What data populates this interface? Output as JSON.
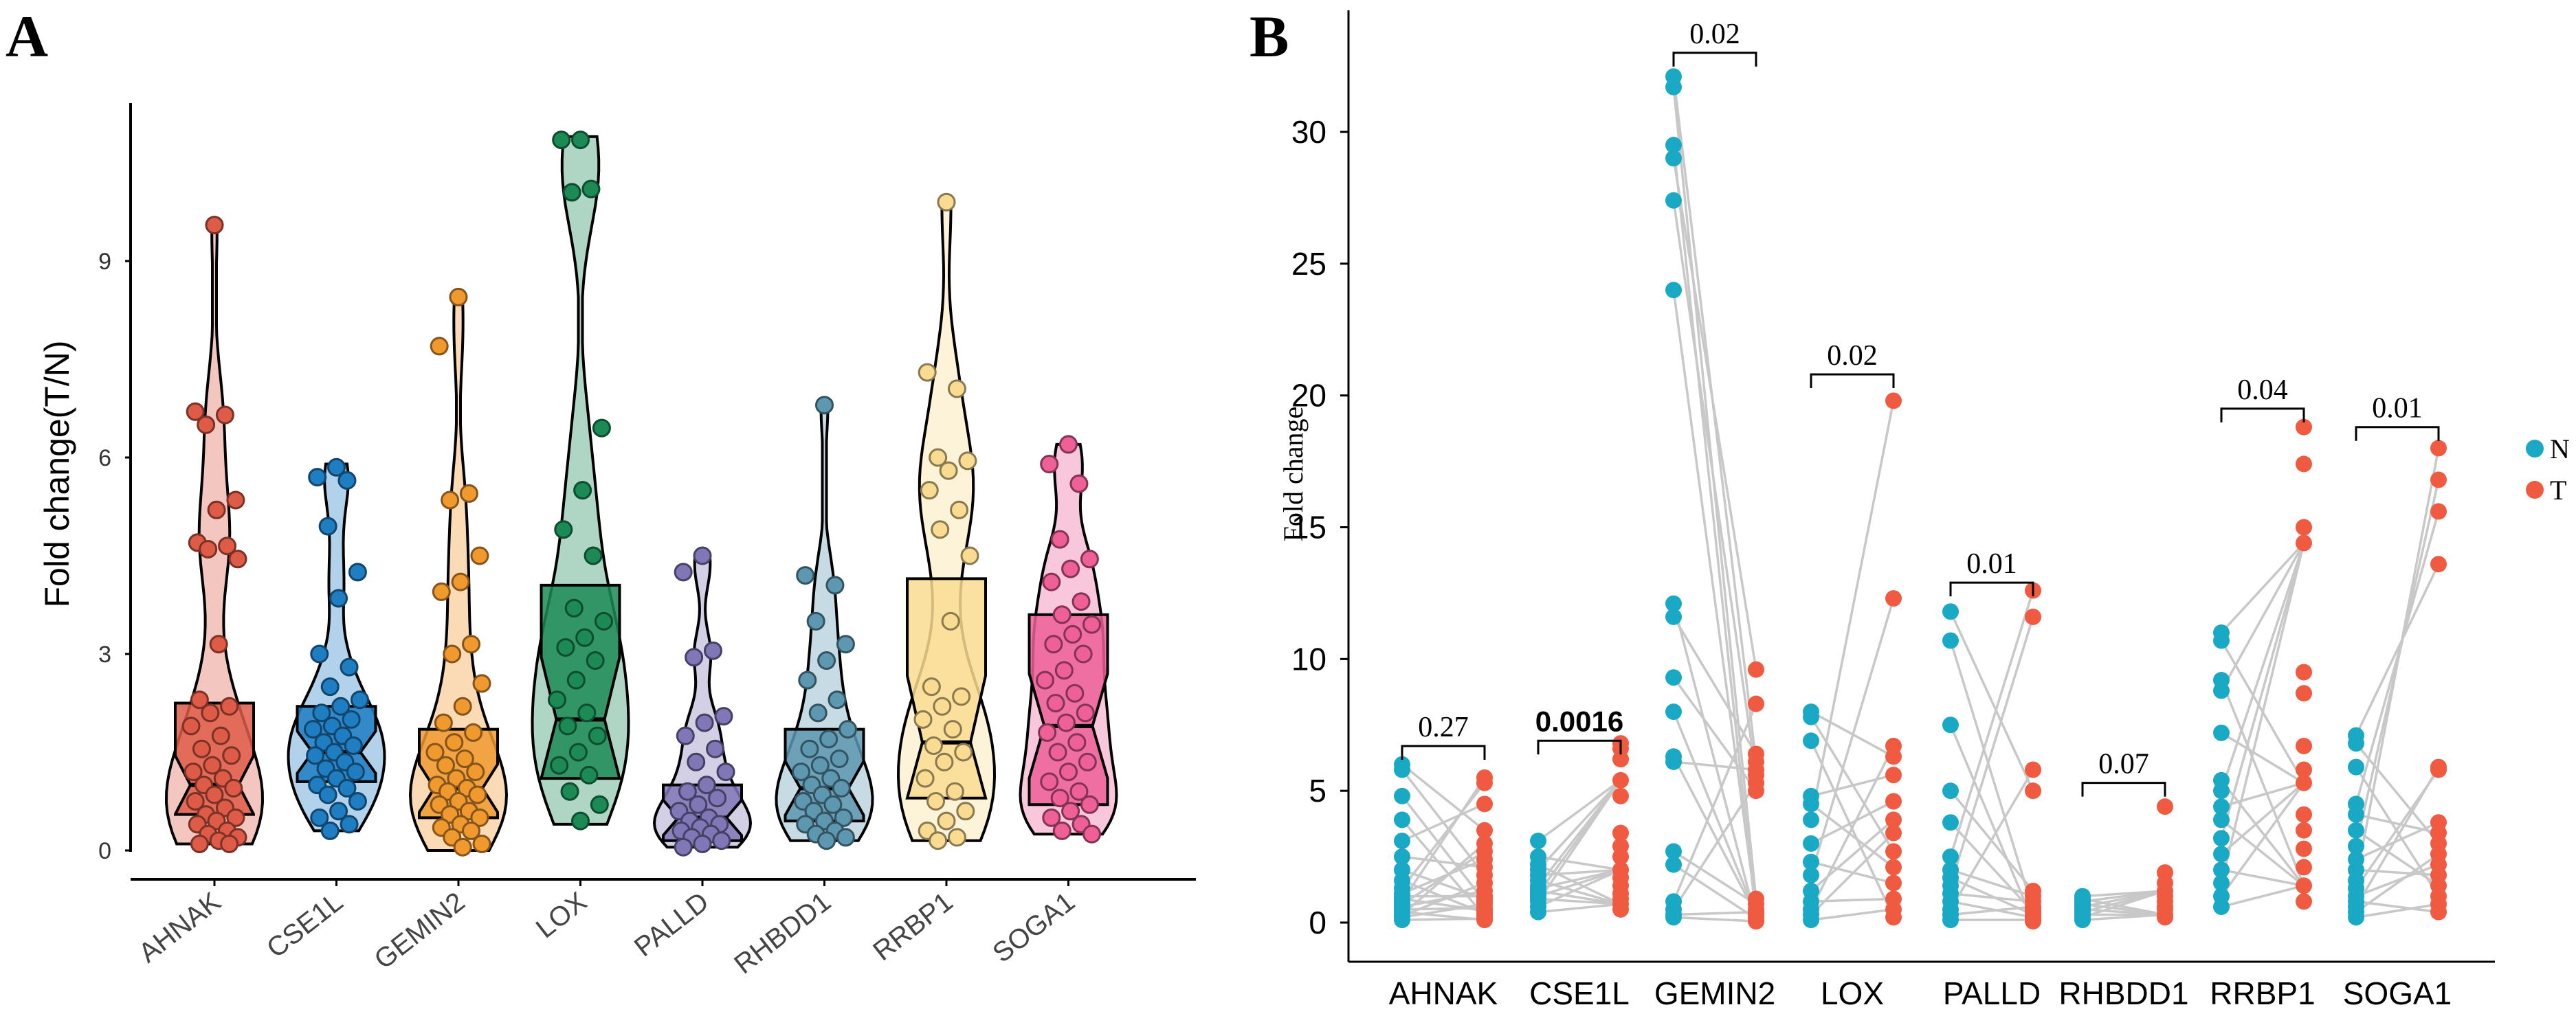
{
  "panel_a_label": "A",
  "panel_b_label": "B",
  "colors": {
    "N": "#1aa9c5",
    "T": "#f05a41",
    "line": "#c8c8c8",
    "genes_a": [
      "#de5b47",
      "#1f7dc2",
      "#f0992f",
      "#1b8a55",
      "#8077b6",
      "#5d97b0",
      "#f9dc91",
      "#ef5f98"
    ]
  },
  "chart_data": [
    {
      "type": "violin-box",
      "panel": "A",
      "title": "",
      "xlabel": "",
      "ylabel": "Fold change(T/N)",
      "ylim": [
        0,
        11
      ],
      "yticks": [
        0,
        3,
        6,
        9
      ],
      "categories": [
        "AHNAK",
        "CSE1L",
        "GEMIN2",
        "LOX",
        "PALLD",
        "RHBDD1",
        "RRBP1",
        "SOGA1"
      ],
      "box_stats": [
        {
          "gene": "AHNAK",
          "min": 0.1,
          "q1": 0.55,
          "median": 1.0,
          "q3": 2.25,
          "max": 9.6
        },
        {
          "gene": "CSE1L",
          "min": 0.3,
          "q1": 1.05,
          "median": 1.5,
          "q3": 2.2,
          "max": 5.9
        },
        {
          "gene": "GEMIN2",
          "min": 0.0,
          "q1": 0.5,
          "median": 0.95,
          "q3": 1.85,
          "max": 8.5
        },
        {
          "gene": "LOX",
          "min": 0.4,
          "q1": 1.1,
          "median": 2.0,
          "q3": 4.05,
          "max": 10.9
        },
        {
          "gene": "PALLD",
          "min": 0.05,
          "q1": 0.15,
          "median": 0.5,
          "q3": 1.0,
          "max": 4.5
        },
        {
          "gene": "RHBDD1",
          "min": 0.15,
          "q1": 0.45,
          "median": 0.95,
          "q3": 1.85,
          "max": 6.8
        },
        {
          "gene": "RRBP1",
          "min": 0.15,
          "q1": 0.8,
          "median": 1.65,
          "q3": 4.15,
          "max": 9.9
        },
        {
          "gene": "SOGA1",
          "min": 0.25,
          "q1": 0.7,
          "median": 1.9,
          "q3": 3.6,
          "max": 6.2
        }
      ],
      "points": {
        "AHNAK": [
          9.55,
          6.7,
          6.65,
          6.5,
          5.35,
          5.2,
          4.7,
          4.65,
          4.6,
          4.45,
          3.15,
          2.3,
          2.2,
          2.1,
          1.9,
          1.75,
          1.55,
          1.45,
          1.3,
          1.2,
          1.1,
          1.0,
          0.95,
          0.85,
          0.75,
          0.65,
          0.55,
          0.5,
          0.45,
          0.4,
          0.3,
          0.25,
          0.2,
          0.15,
          0.1,
          0.1
        ],
        "CSE1L": [
          5.85,
          5.7,
          5.65,
          4.95,
          4.25,
          3.85,
          3.0,
          2.8,
          2.5,
          2.3,
          2.2,
          2.1,
          2.0,
          1.9,
          1.85,
          1.75,
          1.65,
          1.6,
          1.5,
          1.45,
          1.35,
          1.25,
          1.2,
          1.1,
          1.0,
          0.95,
          0.85,
          0.75,
          0.6,
          0.5,
          0.4,
          0.3
        ],
        "GEMIN2": [
          8.45,
          7.7,
          5.45,
          5.35,
          4.5,
          4.1,
          3.95,
          3.15,
          3.0,
          2.55,
          2.2,
          1.95,
          1.8,
          1.65,
          1.5,
          1.4,
          1.3,
          1.2,
          1.1,
          1.0,
          0.95,
          0.9,
          0.85,
          0.75,
          0.7,
          0.6,
          0.55,
          0.5,
          0.4,
          0.35,
          0.3,
          0.2,
          0.1,
          0.05
        ],
        "LOX": [
          10.85,
          10.85,
          10.1,
          10.05,
          6.45,
          5.5,
          4.9,
          4.5,
          3.7,
          3.5,
          3.25,
          3.1,
          2.9,
          2.6,
          2.3,
          2.1,
          1.9,
          1.75,
          1.5,
          1.3,
          1.15,
          0.9,
          0.7,
          0.45
        ],
        "PALLD": [
          4.5,
          4.25,
          3.05,
          2.95,
          2.05,
          1.95,
          1.75,
          1.55,
          1.35,
          1.2,
          1.0,
          0.9,
          0.8,
          0.7,
          0.6,
          0.5,
          0.45,
          0.4,
          0.35,
          0.3,
          0.25,
          0.2,
          0.15,
          0.1,
          0.05
        ],
        "RHBDD1": [
          6.8,
          4.2,
          4.05,
          3.5,
          3.15,
          2.9,
          2.6,
          2.3,
          2.1,
          1.85,
          1.7,
          1.55,
          1.4,
          1.3,
          1.2,
          1.1,
          1.0,
          0.95,
          0.85,
          0.75,
          0.7,
          0.6,
          0.5,
          0.45,
          0.4,
          0.3,
          0.25,
          0.2,
          0.15
        ],
        "RRBP1": [
          9.9,
          7.3,
          7.05,
          6.0,
          5.95,
          5.8,
          5.5,
          5.2,
          4.9,
          4.5,
          3.5,
          2.5,
          2.35,
          2.2,
          2.0,
          1.85,
          1.6,
          1.5,
          1.35,
          1.1,
          0.9,
          0.75,
          0.6,
          0.45,
          0.3,
          0.2,
          0.15
        ],
        "SOGA1": [
          6.2,
          5.9,
          5.6,
          4.75,
          4.45,
          4.3,
          4.1,
          3.8,
          3.6,
          3.45,
          3.3,
          3.15,
          3.0,
          2.75,
          2.6,
          2.4,
          2.25,
          2.1,
          1.95,
          1.8,
          1.65,
          1.5,
          1.35,
          1.2,
          1.05,
          0.9,
          0.8,
          0.7,
          0.6,
          0.5,
          0.4,
          0.3,
          0.25
        ]
      }
    },
    {
      "type": "paired-scatter",
      "panel": "B",
      "title": "",
      "xlabel": "",
      "ylabel": "Fold change",
      "ylim": [
        -1,
        34
      ],
      "yticks": [
        0,
        5,
        10,
        15,
        20,
        25,
        30
      ],
      "categories": [
        "AHNAK",
        "CSE1L",
        "GEMIN2",
        "LOX",
        "PALLD",
        "RHBDD1",
        "RRBP1",
        "SOGA1"
      ],
      "legend": [
        {
          "label": "N",
          "color": "#1aa9c5"
        },
        {
          "label": "T",
          "color": "#f05a41"
        }
      ],
      "legend_position": "right",
      "pvalues": [
        "0.27",
        "0.0016",
        "0.02",
        "0.02",
        "0.01",
        "0.07",
        "0.04",
        "0.01"
      ],
      "pvalue_bold": [
        false,
        true,
        false,
        false,
        false,
        false,
        false,
        false
      ],
      "pvalue_heights": [
        6.7,
        6.9,
        33.0,
        20.8,
        12.9,
        5.3,
        19.5,
        18.8
      ],
      "series": [
        {
          "gene": "AHNAK",
          "N": [
            6.0,
            5.8,
            4.8,
            3.9,
            3.1,
            2.5,
            2.0,
            1.6,
            1.3,
            1.1,
            1.0,
            0.9,
            0.8,
            0.7,
            0.6,
            0.5,
            0.4,
            0.3,
            0.25,
            0.2,
            0.1
          ],
          "T": [
            5.5,
            5.3,
            4.5,
            3.5,
            3.0,
            2.7,
            2.4,
            2.1,
            1.8,
            1.5,
            1.2,
            1.0,
            0.9,
            0.8,
            0.7,
            0.55,
            0.45,
            0.35,
            0.25,
            0.15,
            0.1
          ]
        },
        {
          "gene": "CSE1L",
          "N": [
            3.1,
            2.5,
            2.2,
            2.0,
            1.8,
            1.6,
            1.4,
            1.3,
            1.2,
            1.1,
            1.0,
            0.9,
            0.8,
            0.6,
            0.4
          ],
          "T": [
            6.8,
            6.6,
            6.2,
            5.4,
            4.8,
            3.4,
            2.9,
            2.5,
            2.0,
            1.7,
            1.4,
            1.1,
            0.9,
            0.7,
            0.5
          ]
        },
        {
          "gene": "GEMIN2",
          "N": [
            32.1,
            31.7,
            29.5,
            29.0,
            27.4,
            24.0,
            12.1,
            11.6,
            9.3,
            8.0,
            6.3,
            6.1,
            2.7,
            2.2,
            0.8,
            0.5,
            0.3,
            0.2
          ],
          "T": [
            9.6,
            8.3,
            6.4,
            6.1,
            5.8,
            5.6,
            5.3,
            5.0,
            0.9,
            0.7,
            0.5,
            0.4,
            0.3,
            0.2,
            0.15,
            0.1,
            0.05,
            0.3
          ]
        },
        {
          "gene": "LOX",
          "N": [
            8.0,
            7.8,
            6.9,
            4.8,
            4.5,
            3.9,
            3.0,
            2.3,
            1.8,
            1.2,
            0.8,
            0.5,
            0.3,
            0.1
          ],
          "T": [
            19.8,
            12.3,
            6.7,
            6.3,
            5.6,
            4.6,
            3.9,
            3.4,
            2.7,
            2.1,
            1.5,
            0.9,
            0.5,
            0.2
          ]
        },
        {
          "gene": "PALLD",
          "N": [
            11.8,
            10.7,
            7.5,
            5.0,
            3.8,
            2.5,
            2.0,
            1.7,
            1.4,
            1.1,
            0.8,
            0.5,
            0.3,
            0.1
          ],
          "T": [
            12.6,
            11.6,
            5.8,
            5.0,
            1.2,
            1.0,
            0.8,
            0.6,
            0.5,
            0.4,
            0.3,
            0.2,
            0.1,
            0.05
          ]
        },
        {
          "gene": "RHBDD1",
          "N": [
            1.0,
            0.9,
            0.8,
            0.7,
            0.6,
            0.5,
            0.4,
            0.3,
            0.2,
            0.1
          ],
          "T": [
            4.4,
            1.9,
            1.5,
            1.2,
            1.0,
            0.8,
            0.6,
            0.5,
            0.3,
            0.2
          ]
        },
        {
          "gene": "RRBP1",
          "N": [
            11.0,
            10.7,
            9.2,
            8.8,
            7.2,
            5.4,
            5.0,
            4.4,
            3.9,
            3.2,
            2.6,
            2.0,
            1.5,
            1.0,
            0.6
          ],
          "T": [
            18.8,
            17.4,
            15.0,
            14.4,
            9.5,
            8.7,
            6.7,
            5.8,
            5.3,
            4.1,
            3.5,
            2.8,
            2.1,
            1.4,
            0.8
          ]
        },
        {
          "gene": "SOGA1",
          "N": [
            7.1,
            6.8,
            5.9,
            4.5,
            4.1,
            3.5,
            2.9,
            2.4,
            2.0,
            1.6,
            1.3,
            1.0,
            0.8,
            0.6,
            0.4,
            0.2
          ],
          "T": [
            18.0,
            16.8,
            15.6,
            13.6,
            5.9,
            5.8,
            3.8,
            3.4,
            3.0,
            2.6,
            2.2,
            1.8,
            1.4,
            1.0,
            0.7,
            0.4
          ]
        }
      ]
    }
  ]
}
